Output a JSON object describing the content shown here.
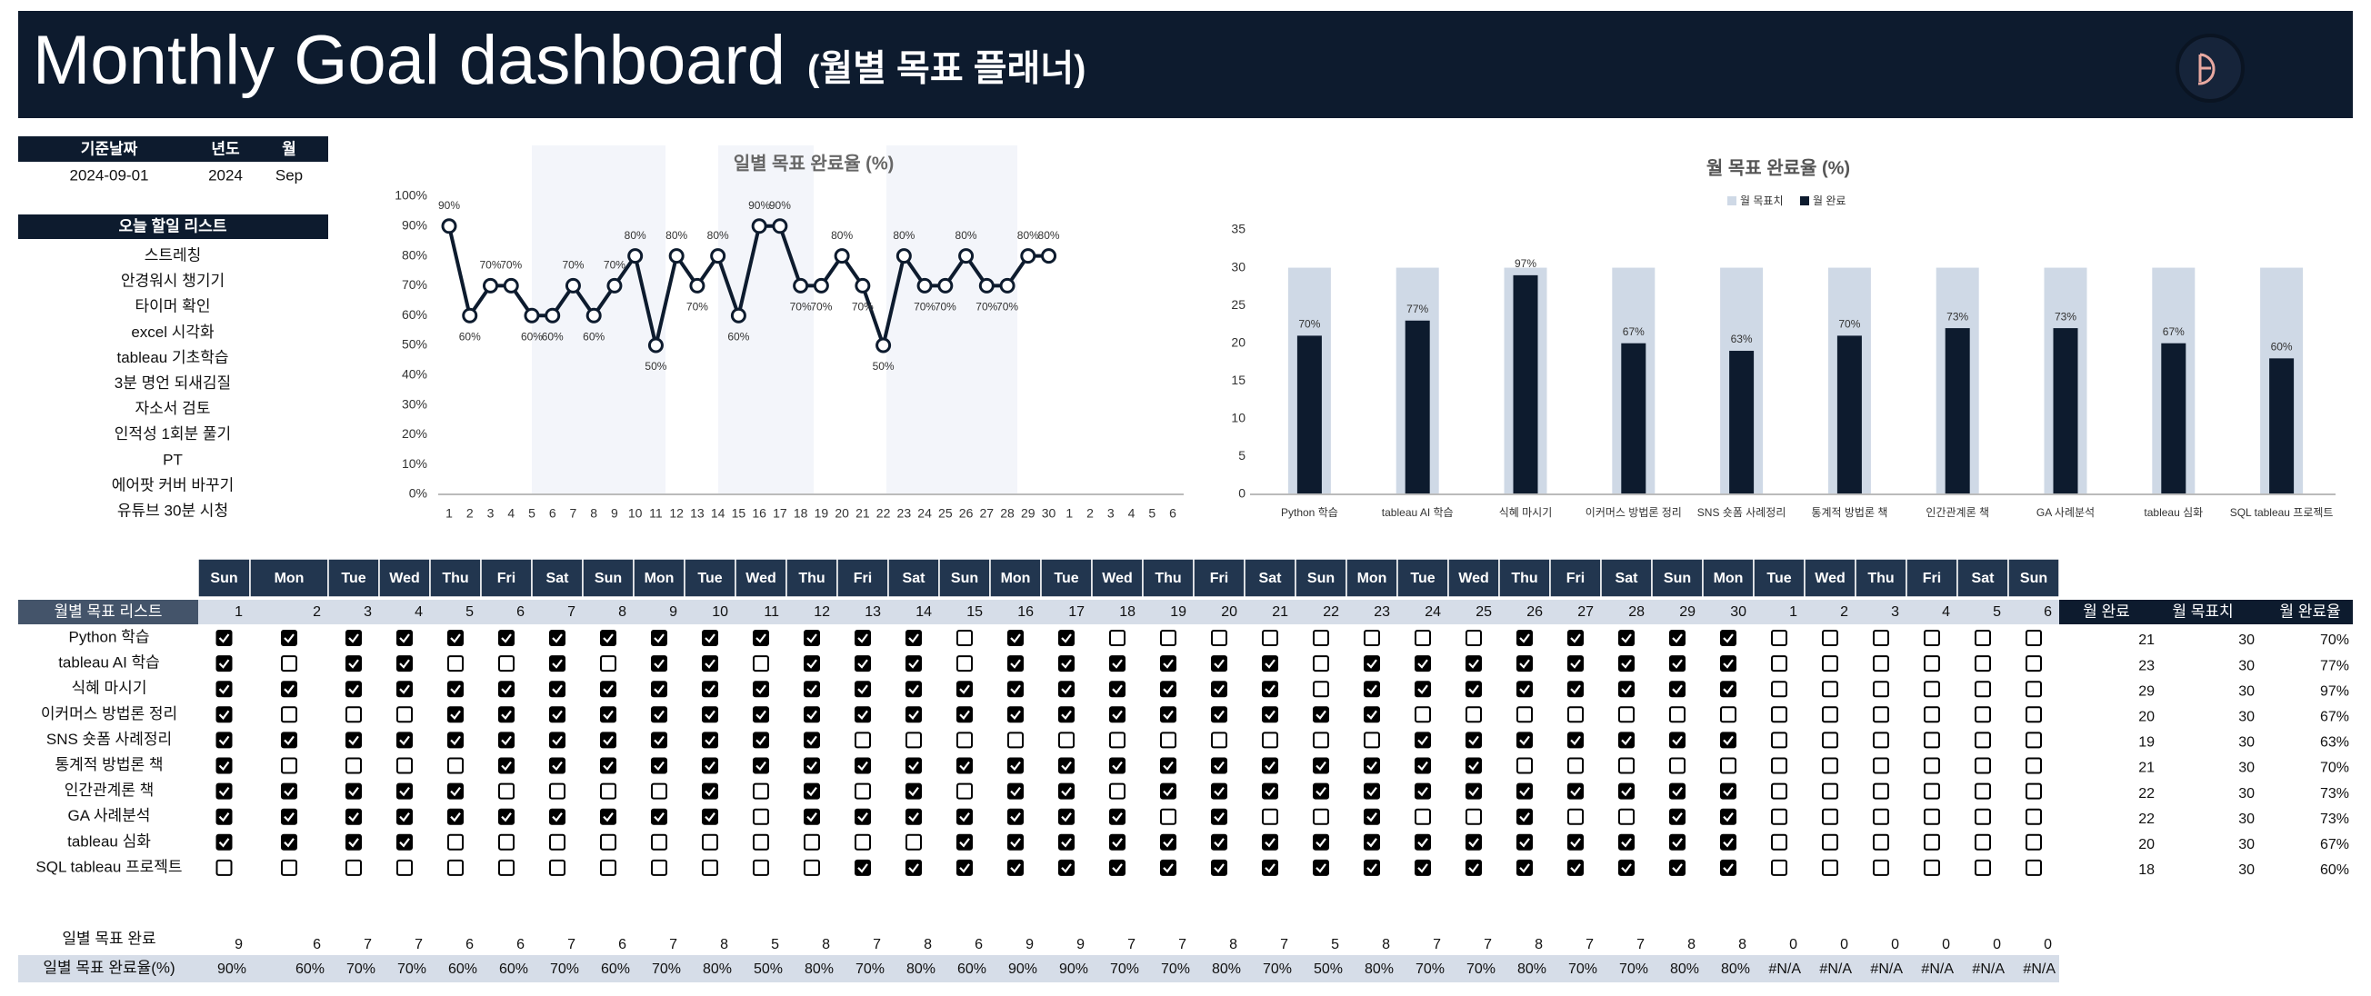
{
  "header": {
    "title": "Monthly Goal dashboard",
    "subtitle": "(월별 목표 플래너)"
  },
  "info": {
    "headers": [
      "기준날짜",
      "년도",
      "월"
    ],
    "values": [
      "2024-09-01",
      "2024",
      "Sep"
    ]
  },
  "todo": {
    "title": "오늘 할일 리스트",
    "items": [
      "스트레칭",
      "안경워시 챙기기",
      "타이머 확인",
      "excel 시각화",
      "tableau 기초학습",
      "3분 명언 되새김질",
      "자소서 검토",
      "인적성 1회분 풀기",
      "PT",
      "에어팟 커버 바꾸기",
      "유튜브 30분 시청"
    ]
  },
  "chart_data": [
    {
      "type": "line",
      "title": "일별 목표 완료율 (%)",
      "color": "#0d1b2e",
      "categories": [
        1,
        2,
        3,
        4,
        5,
        6,
        7,
        8,
        9,
        10,
        11,
        12,
        13,
        14,
        15,
        16,
        17,
        18,
        19,
        20,
        21,
        22,
        23,
        24,
        25,
        26,
        27,
        28,
        29,
        30,
        1,
        2,
        3,
        4,
        5,
        6
      ],
      "values": [
        90,
        60,
        70,
        70,
        60,
        60,
        70,
        60,
        70,
        80,
        50,
        80,
        70,
        80,
        60,
        90,
        90,
        70,
        70,
        80,
        70,
        50,
        80,
        70,
        70,
        80,
        70,
        70,
        80,
        80,
        null,
        null,
        null,
        null,
        null,
        null
      ],
      "value_labels": [
        "90%",
        "60%",
        "70%",
        "70%",
        "60%",
        "60%",
        "70%",
        "60%",
        "70%",
        "80%",
        "50%",
        "80%",
        "70%",
        "80%",
        "60%",
        "90%",
        "90%",
        "70%",
        "70%",
        "80%",
        "70%",
        "50%",
        "80%",
        "70%",
        "70%",
        "80%",
        "70%",
        "70%",
        "80%",
        "80%",
        null,
        null,
        null,
        null,
        null,
        null
      ],
      "ylim": [
        0,
        100
      ],
      "yticks": [
        {
          "value": 0,
          "label": "0%"
        },
        {
          "value": 10,
          "label": "10%"
        },
        {
          "value": 20,
          "label": "20%"
        },
        {
          "value": 30,
          "label": "30%"
        },
        {
          "value": 40,
          "label": "40%"
        },
        {
          "value": 50,
          "label": "50%"
        },
        {
          "value": 60,
          "label": "60%"
        },
        {
          "value": 70,
          "label": "70%"
        },
        {
          "value": 80,
          "label": "80%"
        },
        {
          "value": 90,
          "label": "90%"
        },
        {
          "value": 100,
          "label": "100%"
        }
      ],
      "grid": false
    },
    {
      "type": "bar",
      "title": "월 목표 완료율 (%)",
      "legend": "top",
      "categories": [
        "Python 학습",
        "tableau AI 학습",
        "식혜 마시기",
        "이커머스 방법론 정리",
        "SNS 숏폼 사례정리",
        "통계적 방법론 책",
        "인간관계론 책",
        "GA 사례분석",
        "tableau 심화",
        "SQL tableau 프로젝트"
      ],
      "series": [
        {
          "name": "월 목표치",
          "color": "#cfd9e6",
          "values": [
            30,
            30,
            30,
            30,
            30,
            30,
            30,
            30,
            30,
            30
          ]
        },
        {
          "name": "월 완료",
          "color": "#0d1b2e",
          "values": [
            21,
            23,
            29,
            20,
            19,
            21,
            22,
            22,
            20,
            18
          ]
        }
      ],
      "data_labels": [
        "70%",
        "77%",
        "97%",
        "67%",
        "63%",
        "70%",
        "73%",
        "73%",
        "67%",
        "60%"
      ],
      "ylim": [
        0,
        35
      ],
      "yticks": [
        0,
        5,
        10,
        15,
        20,
        25,
        30,
        35
      ],
      "grid": false
    }
  ],
  "tracker": {
    "title": "월별 목표 리스트",
    "weekdays": [
      "Sun",
      "Mon",
      "Tue",
      "Wed",
      "Thu",
      "Fri",
      "Sat",
      "Sun",
      "Mon",
      "Tue",
      "Wed",
      "Thu",
      "Fri",
      "Sat",
      "Sun",
      "Mon",
      "Tue",
      "Wed",
      "Thu",
      "Fri",
      "Sat",
      "Sun",
      "Mon",
      "Tue",
      "Wed",
      "Thu",
      "Fri",
      "Sat",
      "Sun",
      "Mon",
      "Tue",
      "Wed",
      "Thu",
      "Fri",
      "Sat",
      "Sun"
    ],
    "days": [
      1,
      2,
      3,
      4,
      5,
      6,
      7,
      8,
      9,
      10,
      11,
      12,
      13,
      14,
      15,
      16,
      17,
      18,
      19,
      20,
      21,
      22,
      23,
      24,
      25,
      26,
      27,
      28,
      29,
      30,
      1,
      2,
      3,
      4,
      5,
      6
    ],
    "goals": [
      "Python 학습",
      "tableau AI 학습",
      "식혜 마시기",
      "이커머스 방법론 정리",
      "SNS 숏폼 사례정리",
      "통계적 방법론 책",
      "인간관계론 책",
      "GA 사례분석",
      "tableau 심화",
      "SQL tableau 프로젝트"
    ],
    "checked": [
      [
        true,
        true,
        true,
        true,
        true,
        true,
        true,
        true,
        true,
        true,
        true,
        true,
        true,
        true,
        false,
        true,
        true,
        false,
        false,
        false,
        false,
        false,
        false,
        false,
        false,
        true,
        true,
        true,
        true,
        true,
        false,
        false,
        false,
        false,
        false,
        false
      ],
      [
        true,
        false,
        true,
        true,
        false,
        false,
        true,
        false,
        true,
        true,
        false,
        true,
        true,
        true,
        false,
        true,
        true,
        true,
        true,
        true,
        true,
        false,
        true,
        true,
        true,
        true,
        true,
        true,
        true,
        true,
        false,
        false,
        false,
        false,
        false,
        false
      ],
      [
        true,
        true,
        true,
        true,
        true,
        true,
        true,
        true,
        true,
        true,
        true,
        true,
        true,
        true,
        true,
        true,
        true,
        true,
        true,
        true,
        true,
        false,
        true,
        true,
        true,
        true,
        true,
        true,
        true,
        true,
        false,
        false,
        false,
        false,
        false,
        false
      ],
      [
        true,
        false,
        false,
        false,
        true,
        true,
        true,
        true,
        true,
        true,
        true,
        true,
        true,
        true,
        true,
        true,
        true,
        true,
        true,
        true,
        true,
        true,
        true,
        false,
        false,
        false,
        false,
        false,
        false,
        false,
        false,
        false,
        false,
        false,
        false,
        false
      ],
      [
        true,
        true,
        true,
        true,
        true,
        true,
        true,
        true,
        true,
        true,
        true,
        true,
        false,
        false,
        false,
        false,
        false,
        false,
        false,
        false,
        false,
        false,
        false,
        true,
        true,
        true,
        true,
        true,
        true,
        true,
        false,
        false,
        false,
        false,
        false,
        false
      ],
      [
        true,
        false,
        false,
        false,
        false,
        true,
        true,
        true,
        true,
        true,
        true,
        true,
        true,
        true,
        true,
        true,
        true,
        true,
        true,
        true,
        true,
        true,
        true,
        true,
        true,
        false,
        false,
        false,
        false,
        false,
        false,
        false,
        false,
        false,
        false,
        false
      ],
      [
        true,
        true,
        true,
        true,
        true,
        false,
        false,
        false,
        false,
        true,
        false,
        true,
        false,
        true,
        false,
        true,
        true,
        false,
        true,
        true,
        true,
        true,
        true,
        true,
        true,
        true,
        true,
        true,
        true,
        true,
        false,
        false,
        false,
        false,
        false,
        false
      ],
      [
        true,
        true,
        true,
        true,
        true,
        true,
        true,
        true,
        true,
        true,
        false,
        true,
        true,
        true,
        true,
        true,
        true,
        true,
        false,
        true,
        false,
        false,
        true,
        false,
        false,
        true,
        false,
        false,
        true,
        true,
        false,
        false,
        false,
        false,
        false,
        false
      ],
      [
        true,
        true,
        true,
        true,
        false,
        false,
        false,
        false,
        false,
        false,
        false,
        false,
        false,
        false,
        true,
        true,
        true,
        true,
        true,
        true,
        true,
        true,
        true,
        true,
        true,
        true,
        true,
        true,
        true,
        true,
        false,
        false,
        false,
        false,
        false,
        false
      ],
      [
        false,
        false,
        false,
        false,
        false,
        false,
        false,
        false,
        false,
        false,
        false,
        false,
        true,
        true,
        true,
        true,
        true,
        true,
        true,
        true,
        true,
        true,
        true,
        true,
        true,
        true,
        true,
        true,
        true,
        true,
        false,
        false,
        false,
        false,
        false,
        false
      ]
    ],
    "summary_headers": [
      "월 완료",
      "월 목표치",
      "월 완료율"
    ],
    "summary": [
      {
        "done": 21,
        "target": 30,
        "rate": "70%"
      },
      {
        "done": 23,
        "target": 30,
        "rate": "77%"
      },
      {
        "done": 29,
        "target": 30,
        "rate": "97%"
      },
      {
        "done": 20,
        "target": 30,
        "rate": "67%"
      },
      {
        "done": 19,
        "target": 30,
        "rate": "63%"
      },
      {
        "done": 21,
        "target": 30,
        "rate": "70%"
      },
      {
        "done": 22,
        "target": 30,
        "rate": "73%"
      },
      {
        "done": 22,
        "target": 30,
        "rate": "73%"
      },
      {
        "done": 20,
        "target": 30,
        "rate": "67%"
      },
      {
        "done": 18,
        "target": 30,
        "rate": "60%"
      }
    ],
    "daily_done_label": "일별 목표 완료",
    "daily_done": [
      9,
      6,
      7,
      7,
      6,
      6,
      7,
      6,
      7,
      8,
      5,
      8,
      7,
      8,
      6,
      9,
      9,
      7,
      7,
      8,
      7,
      5,
      8,
      7,
      7,
      8,
      7,
      7,
      8,
      8,
      0,
      0,
      0,
      0,
      0,
      0
    ],
    "daily_rate_label": "일별 목표 완료율(%)",
    "daily_rate": [
      "90%",
      "60%",
      "70%",
      "70%",
      "60%",
      "60%",
      "70%",
      "60%",
      "70%",
      "80%",
      "50%",
      "80%",
      "70%",
      "80%",
      "60%",
      "90%",
      "90%",
      "70%",
      "70%",
      "80%",
      "70%",
      "50%",
      "80%",
      "70%",
      "70%",
      "80%",
      "70%",
      "70%",
      "80%",
      "80%",
      "#N/A",
      "#N/A",
      "#N/A",
      "#N/A",
      "#N/A",
      "#N/A"
    ]
  }
}
